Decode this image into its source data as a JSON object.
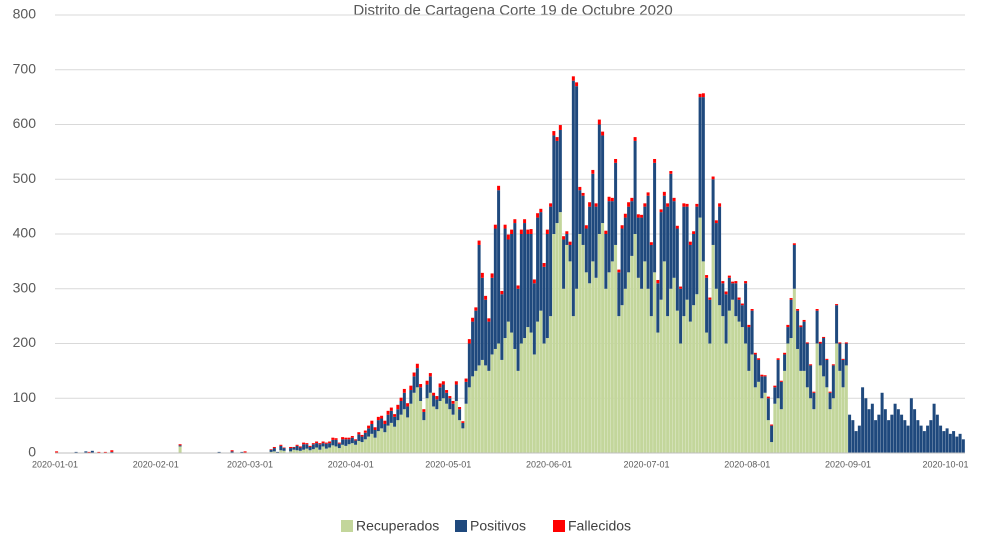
{
  "chart_data": {
    "type": "stacked_bar",
    "title": "Distrito de Cartagena Corte 19 de Octubre 2020",
    "ylim": [
      0,
      800
    ],
    "yticks": [
      0,
      100,
      200,
      300,
      400,
      500,
      600,
      700,
      800
    ],
    "grid": true,
    "legend": "bottom",
    "categories": [
      "2020-01-01",
      null,
      null,
      null,
      null,
      null,
      null,
      null,
      null,
      null,
      null,
      null,
      null,
      null,
      null,
      null,
      null,
      null,
      null,
      null,
      null,
      null,
      null,
      null,
      null,
      null,
      null,
      null,
      null,
      null,
      null,
      "2020-02-01",
      null,
      null,
      null,
      null,
      null,
      null,
      null,
      null,
      null,
      null,
      null,
      null,
      null,
      null,
      null,
      null,
      null,
      null,
      null,
      null,
      null,
      null,
      null,
      null,
      null,
      null,
      null,
      null,
      "2020-03-01",
      null,
      null,
      null,
      null,
      null,
      null,
      null,
      null,
      null,
      null,
      null,
      null,
      null,
      null,
      null,
      null,
      null,
      null,
      null,
      null,
      null,
      null,
      null,
      null,
      null,
      null,
      null,
      null,
      null,
      null,
      "2020-04-01",
      null,
      null,
      null,
      null,
      null,
      null,
      null,
      null,
      null,
      null,
      null,
      null,
      null,
      null,
      null,
      null,
      null,
      null,
      null,
      null,
      null,
      null,
      null,
      null,
      null,
      null,
      null,
      null,
      null,
      "2020-05-01",
      null,
      null,
      null,
      null,
      null,
      null,
      null,
      null,
      null,
      null,
      null,
      null,
      null,
      null,
      null,
      null,
      null,
      null,
      null,
      null,
      null,
      null,
      null,
      null,
      null,
      null,
      null,
      null,
      null,
      null,
      "2020-06-01",
      null,
      null,
      null,
      null,
      null,
      null,
      null,
      null,
      null,
      null,
      null,
      null,
      null,
      null,
      null,
      null,
      null,
      null,
      null,
      null,
      null,
      null,
      null,
      null,
      null,
      null,
      null,
      null,
      null,
      "2020-07-01",
      null,
      null,
      null,
      null,
      null,
      null,
      null,
      null,
      null,
      null,
      null,
      null,
      null,
      null,
      null,
      null,
      null,
      null,
      null,
      null,
      null,
      null,
      null,
      null,
      null,
      null,
      null,
      null,
      null,
      null,
      "2020-08-01",
      null,
      null,
      null,
      null,
      null,
      null,
      null,
      null,
      null,
      null,
      null,
      null,
      null,
      null,
      null,
      null,
      null,
      null,
      null,
      null,
      null,
      null,
      null,
      null,
      null,
      null,
      null,
      null,
      null,
      null,
      "2020-09-01",
      null,
      null,
      null,
      null,
      null,
      null,
      null,
      null,
      null,
      null,
      null,
      null,
      null,
      null,
      null,
      null,
      null,
      null,
      null,
      null,
      null,
      null,
      null,
      null,
      null,
      null,
      null,
      null,
      null,
      "2020-10-01",
      null,
      null,
      null,
      null,
      null
    ],
    "series": [
      {
        "name": "Recuperados",
        "color": "#c3d69b",
        "values": [
          0,
          0,
          0,
          0,
          0,
          0,
          0,
          0,
          0,
          0,
          0,
          0,
          0,
          0,
          0,
          0,
          0,
          0,
          0,
          0,
          0,
          0,
          0,
          0,
          0,
          0,
          0,
          0,
          0,
          0,
          0,
          0,
          0,
          0,
          0,
          0,
          0,
          0,
          12,
          0,
          0,
          0,
          0,
          0,
          0,
          0,
          0,
          0,
          0,
          0,
          0,
          0,
          0,
          0,
          0,
          0,
          0,
          0,
          0,
          0,
          0,
          0,
          0,
          0,
          0,
          0,
          2,
          3,
          0,
          5,
          4,
          0,
          3,
          6,
          5,
          4,
          6,
          8,
          5,
          7,
          10,
          6,
          12,
          8,
          10,
          14,
          12,
          9,
          15,
          13,
          16,
          18,
          15,
          22,
          20,
          25,
          30,
          35,
          28,
          40,
          45,
          38,
          50,
          55,
          48,
          60,
          70,
          80,
          65,
          90,
          110,
          120,
          95,
          60,
          100,
          110,
          85,
          80,
          95,
          100,
          90,
          80,
          70,
          95,
          60,
          45,
          90,
          120,
          140,
          150,
          160,
          170,
          160,
          150,
          180,
          190,
          200,
          170,
          210,
          240,
          220,
          190,
          150,
          200,
          210,
          230,
          220,
          180,
          240,
          260,
          200,
          210,
          250,
          400,
          420,
          440,
          300,
          380,
          350,
          250,
          300,
          400,
          380,
          330,
          310,
          350,
          320,
          400,
          420,
          300,
          330,
          350,
          380,
          250,
          270,
          300,
          330,
          360,
          400,
          320,
          300,
          350,
          300,
          250,
          330,
          220,
          280,
          350,
          250,
          300,
          320,
          260,
          200,
          250,
          280,
          240,
          270,
          290,
          430,
          350,
          220,
          200,
          380,
          300,
          270,
          250,
          200,
          260,
          280,
          250,
          240,
          230,
          200,
          150,
          180,
          120,
          130,
          100,
          110,
          60,
          20,
          90,
          100,
          80,
          150,
          200,
          210,
          300,
          190,
          150,
          150,
          120,
          100,
          80,
          200,
          160,
          140,
          120,
          80,
          100,
          200,
          150,
          120,
          160,
          0,
          0,
          0,
          0,
          0,
          0,
          0,
          0,
          0,
          0,
          0,
          0,
          0,
          0,
          0,
          0,
          0,
          0,
          0,
          0,
          0,
          0,
          0,
          0,
          0,
          0,
          0,
          0,
          0,
          0,
          0,
          0,
          0,
          0,
          0,
          0
        ]
      },
      {
        "name": "Positivos",
        "color": "#1f497d",
        "values": [
          0,
          0,
          0,
          0,
          0,
          0,
          2,
          0,
          0,
          3,
          0,
          4,
          0,
          0,
          0,
          0,
          0,
          2,
          0,
          0,
          0,
          0,
          0,
          0,
          0,
          0,
          0,
          0,
          0,
          0,
          0,
          0,
          0,
          0,
          0,
          0,
          0,
          0,
          2,
          0,
          0,
          0,
          0,
          0,
          0,
          0,
          0,
          0,
          0,
          0,
          2,
          0,
          0,
          0,
          3,
          0,
          0,
          2,
          0,
          0,
          0,
          0,
          0,
          0,
          0,
          0,
          4,
          6,
          2,
          8,
          5,
          0,
          6,
          4,
          8,
          6,
          10,
          8,
          6,
          9,
          8,
          10,
          6,
          9,
          8,
          10,
          12,
          8,
          10,
          12,
          9,
          10,
          8,
          12,
          10,
          12,
          15,
          18,
          14,
          20,
          18,
          15,
          20,
          22,
          18,
          20,
          25,
          30,
          20,
          25,
          30,
          35,
          25,
          15,
          25,
          30,
          20,
          18,
          25,
          25,
          20,
          20,
          20,
          30,
          20,
          10,
          40,
          80,
          100,
          110,
          220,
          150,
          120,
          90,
          140,
          220,
          280,
          120,
          200,
          150,
          180,
          230,
          150,
          200,
          210,
          170,
          180,
          130,
          190,
          180,
          140,
          190,
          200,
          180,
          150,
          150,
          90,
          20,
          30,
          430,
          370,
          80,
          90,
          80,
          140,
          160,
          130,
          200,
          160,
          100,
          130,
          110,
          150,
          80,
          140,
          130,
          120,
          100,
          170,
          110,
          130,
          100,
          170,
          130,
          200,
          90,
          160,
          120,
          200,
          210,
          140,
          150,
          100,
          200,
          170,
          140,
          130,
          160,
          220,
          300,
          100,
          80,
          120,
          120,
          180,
          60,
          90,
          60,
          30,
          60,
          40,
          40,
          110,
          80,
          80,
          60,
          40,
          40,
          30,
          40,
          30,
          30,
          70,
          50,
          30,
          30,
          70,
          80,
          70,
          80,
          90,
          80,
          60,
          30,
          60,
          40,
          70,
          50,
          30,
          60,
          70,
          50,
          50,
          40,
          70,
          60,
          40,
          50,
          120,
          100,
          80,
          90,
          60,
          70,
          110,
          80,
          60,
          70,
          90,
          80,
          70,
          60,
          50,
          100,
          80,
          60,
          50,
          40,
          50,
          60,
          90,
          70,
          50,
          40,
          45,
          35,
          40,
          30,
          35,
          25
        ]
      },
      {
        "name": "Fallecidos",
        "color": "#ff0000",
        "values": [
          3,
          0,
          0,
          0,
          0,
          0,
          0,
          0,
          0,
          0,
          2,
          0,
          0,
          2,
          0,
          2,
          0,
          3,
          0,
          0,
          0,
          0,
          0,
          0,
          0,
          0,
          0,
          0,
          0,
          0,
          0,
          0,
          0,
          0,
          0,
          0,
          0,
          0,
          2,
          0,
          0,
          0,
          0,
          0,
          0,
          0,
          0,
          0,
          0,
          0,
          0,
          0,
          0,
          0,
          2,
          0,
          0,
          0,
          3,
          0,
          0,
          0,
          0,
          0,
          0,
          0,
          1,
          2,
          0,
          2,
          1,
          0,
          2,
          1,
          2,
          2,
          3,
          2,
          2,
          2,
          3,
          2,
          3,
          2,
          3,
          4,
          3,
          2,
          4,
          3,
          3,
          3,
          2,
          4,
          3,
          4,
          5,
          6,
          5,
          6,
          5,
          6,
          7,
          6,
          5,
          8,
          6,
          7,
          6,
          8,
          7,
          8,
          6,
          5,
          7,
          6,
          5,
          6,
          7,
          6,
          5,
          4,
          5,
          6,
          4,
          3,
          6,
          8,
          7,
          6,
          8,
          9,
          7,
          6,
          8,
          7,
          8,
          6,
          7,
          9,
          8,
          7,
          6,
          8,
          7,
          8,
          9,
          7,
          8,
          6,
          7,
          8,
          6,
          8,
          7,
          9,
          6,
          5,
          6,
          8,
          7,
          6,
          5,
          6,
          8,
          7,
          6,
          9,
          7,
          6,
          8,
          6,
          7,
          5,
          6,
          7,
          8,
          6,
          7,
          6,
          5,
          6,
          6,
          5,
          7,
          6,
          5,
          7,
          6,
          5,
          6,
          5,
          4,
          6,
          5,
          6,
          5,
          5,
          6,
          7,
          5,
          4,
          5,
          5,
          6,
          4,
          5,
          4,
          3,
          4,
          4,
          3,
          4,
          4,
          3,
          3,
          3,
          3,
          2,
          3,
          2,
          3,
          3,
          2,
          3,
          4,
          3,
          3,
          3,
          3,
          3,
          2,
          2,
          2,
          3,
          3,
          2,
          2,
          2,
          2,
          2,
          2,
          2,
          2,
          0,
          0,
          0,
          0,
          0,
          0,
          0,
          0,
          0,
          0,
          0,
          0,
          0,
          0,
          0,
          0,
          0,
          0,
          0,
          0,
          0,
          0,
          0,
          0,
          0,
          0,
          0,
          0,
          0,
          0,
          0,
          0,
          0,
          0,
          0,
          0
        ]
      }
    ]
  }
}
